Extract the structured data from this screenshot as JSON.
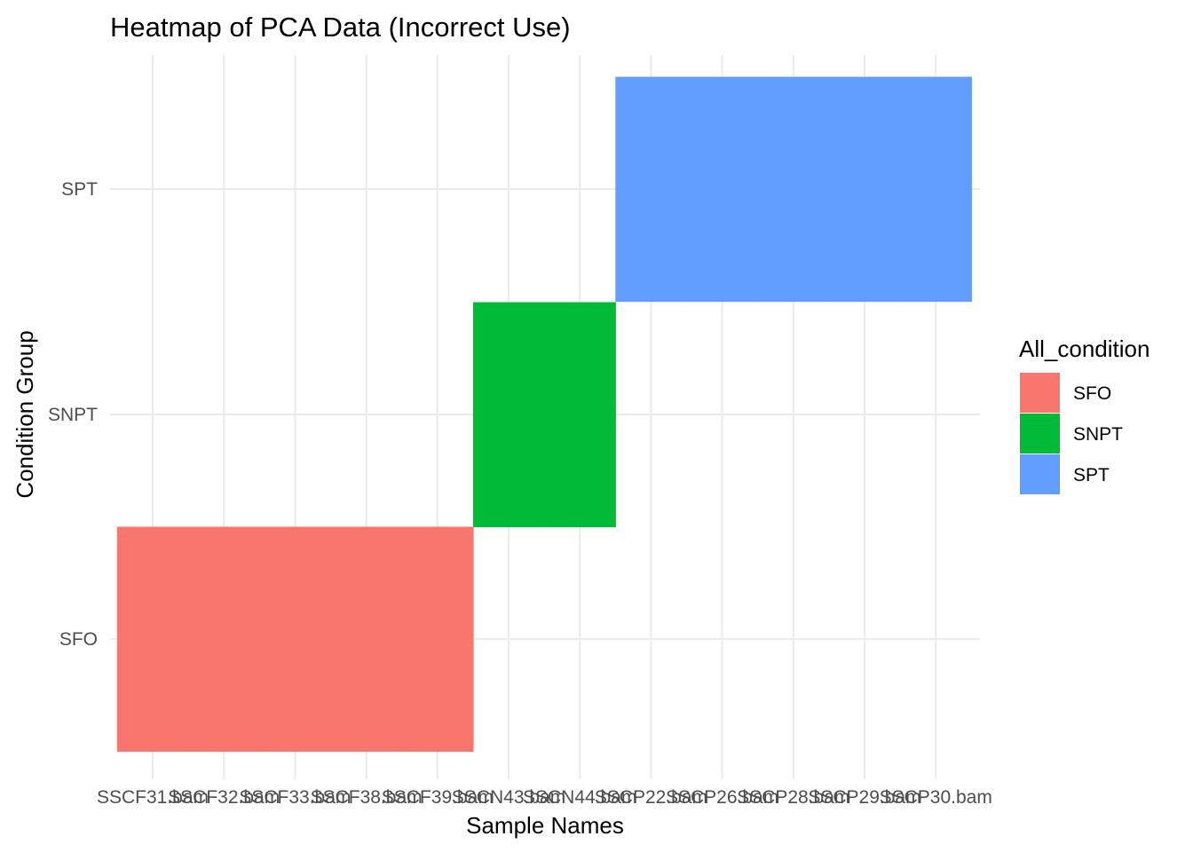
{
  "chart_data": {
    "type": "heatmap",
    "title": "Heatmap of PCA Data (Incorrect Use)",
    "xlabel": "Sample Names",
    "ylabel": "Condition Group",
    "x_categories": [
      "SSCF31.bam",
      "SSCF32.bam",
      "SSCF33.bam",
      "SSCF38.bam",
      "SSCF39.bam",
      "SSCN43.bam",
      "SSCN44.bam",
      "SSCP22.bam",
      "SSCP26.bam",
      "SSCP28.bam",
      "SSCP29.bam",
      "SSCP30.bam"
    ],
    "y_categories": [
      "SFO",
      "SNPT",
      "SPT"
    ],
    "cells": [
      {
        "x": "SSCF31.bam",
        "y": "SFO",
        "fill": "SFO"
      },
      {
        "x": "SSCF32.bam",
        "y": "SFO",
        "fill": "SFO"
      },
      {
        "x": "SSCF33.bam",
        "y": "SFO",
        "fill": "SFO"
      },
      {
        "x": "SSCF38.bam",
        "y": "SFO",
        "fill": "SFO"
      },
      {
        "x": "SSCF39.bam",
        "y": "SFO",
        "fill": "SFO"
      },
      {
        "x": "SSCN43.bam",
        "y": "SNPT",
        "fill": "SNPT"
      },
      {
        "x": "SSCN44.bam",
        "y": "SNPT",
        "fill": "SNPT"
      },
      {
        "x": "SSCP22.bam",
        "y": "SPT",
        "fill": "SPT"
      },
      {
        "x": "SSCP26.bam",
        "y": "SPT",
        "fill": "SPT"
      },
      {
        "x": "SSCP28.bam",
        "y": "SPT",
        "fill": "SPT"
      },
      {
        "x": "SSCP29.bam",
        "y": "SPT",
        "fill": "SPT"
      },
      {
        "x": "SSCP30.bam",
        "y": "SPT",
        "fill": "SPT"
      }
    ],
    "legend": {
      "title": "All_condition",
      "position": "right",
      "entries": [
        {
          "label": "SFO",
          "color": "#F8766D"
        },
        {
          "label": "SNPT",
          "color": "#00BA38"
        },
        {
          "label": "SPT",
          "color": "#619CFF"
        }
      ]
    },
    "grid": true
  }
}
